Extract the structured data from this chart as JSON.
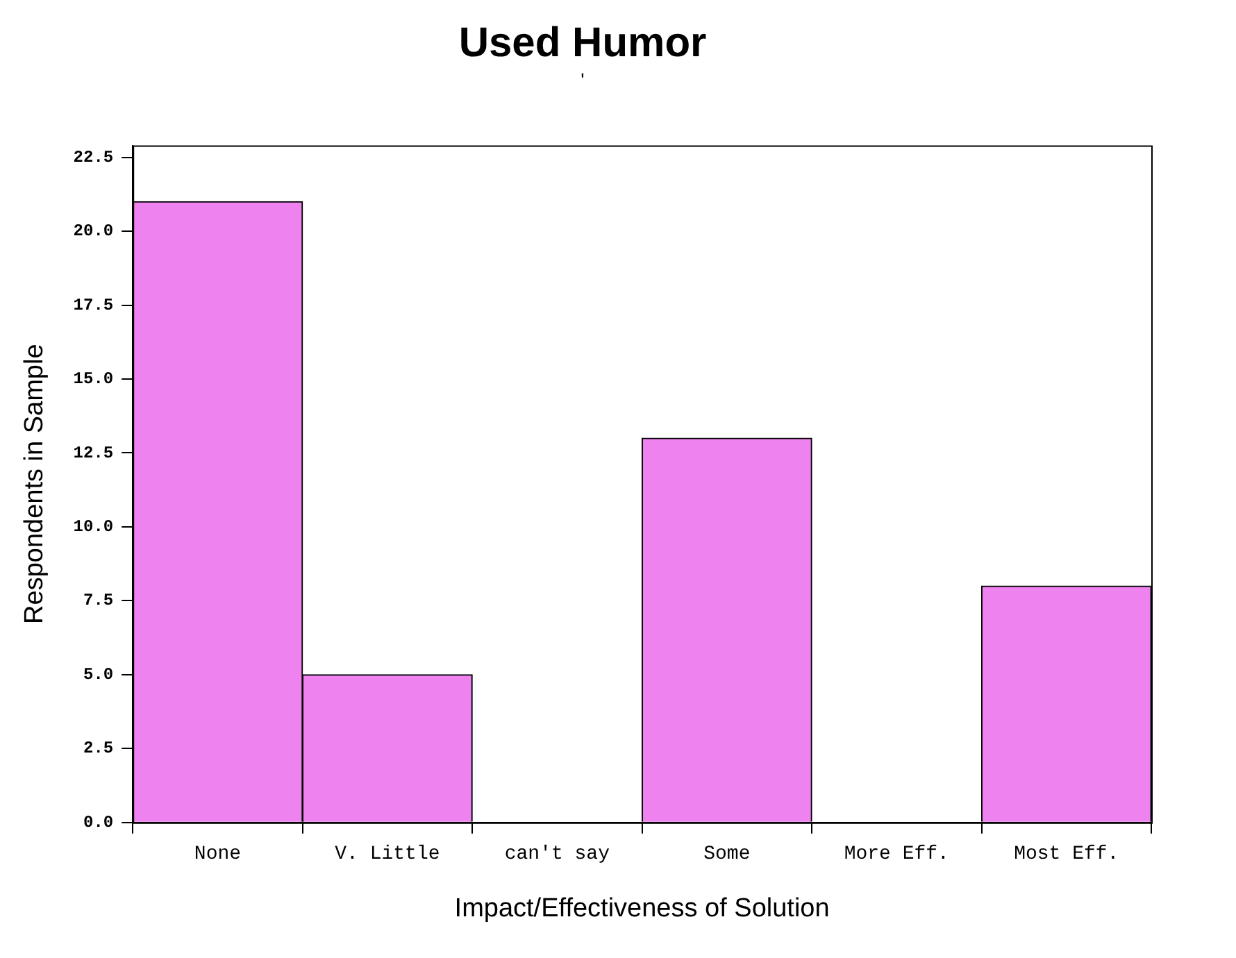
{
  "chart_data": {
    "type": "bar",
    "title": "Used Humor",
    "subtitle": "'",
    "xlabel": "Impact/Effectiveness of Solution",
    "ylabel": "Respondents in Sample",
    "categories": [
      "None",
      "V. Little",
      "can't say",
      "Some",
      "More Eff.",
      "Most Eff."
    ],
    "values": [
      21,
      5,
      0,
      13,
      0,
      8
    ],
    "color": "#ee82ee",
    "ylim": [
      0,
      22.9
    ],
    "yticks": [
      {
        "value": 0,
        "label": "0.0"
      },
      {
        "value": 2.5,
        "label": "2.5"
      },
      {
        "value": 5,
        "label": "5.0"
      },
      {
        "value": 7.5,
        "label": "7.5"
      },
      {
        "value": 10,
        "label": "10.0"
      },
      {
        "value": 12.5,
        "label": "12.5"
      },
      {
        "value": 15,
        "label": "15.0"
      },
      {
        "value": 17.5,
        "label": "17.5"
      },
      {
        "value": 20,
        "label": "20.0"
      },
      {
        "value": 22.5,
        "label": "22.5"
      }
    ],
    "grid": false,
    "legend": false
  }
}
